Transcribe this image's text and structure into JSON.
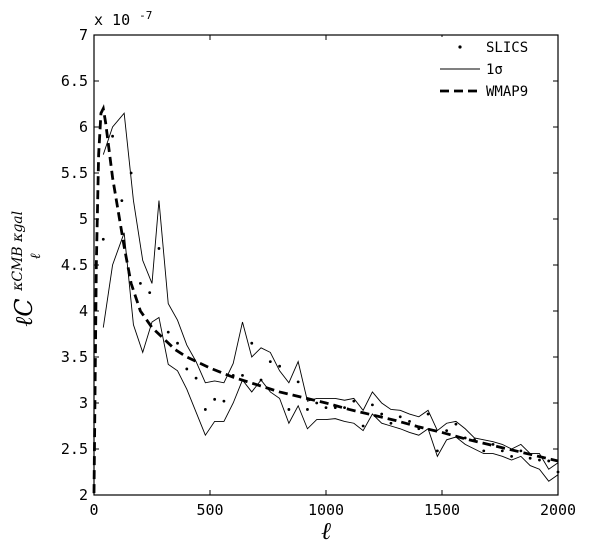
{
  "chart_data": {
    "type": "line",
    "x_axis": {
      "label": "ℓ",
      "range": [
        0,
        2000
      ],
      "ticks": [
        0,
        500,
        1000,
        1500,
        2000
      ],
      "tick_labels": [
        "0",
        "500",
        "1000",
        "1500",
        "2000"
      ]
    },
    "y_axis": {
      "label_main": "ℓC",
      "label_sup": "κCMB κgal",
      "label_sub": "ℓ",
      "range": [
        2,
        7
      ],
      "ticks": [
        2,
        2.5,
        3,
        3.5,
        4,
        4.5,
        5,
        5.5,
        6,
        6.5,
        7
      ],
      "tick_labels": [
        "2",
        "2.5",
        "3",
        "3.5",
        "4",
        "4.5",
        "5",
        "5.5",
        "6",
        "6.5",
        "7"
      ],
      "multiplier_base": "x 10",
      "multiplier_exp": "-7"
    },
    "grid": false,
    "legend_position": "top-right",
    "series": [
      {
        "name": "SLICS",
        "style": "dots",
        "color": "#000000",
        "points": [
          [
            40,
            4.78
          ],
          [
            80,
            5.9
          ],
          [
            120,
            5.2
          ],
          [
            160,
            5.5
          ],
          [
            200,
            4.3
          ],
          [
            240,
            4.2
          ],
          [
            280,
            4.68
          ],
          [
            320,
            3.77
          ],
          [
            360,
            3.65
          ],
          [
            400,
            3.37
          ],
          [
            440,
            3.27
          ],
          [
            480,
            2.93
          ],
          [
            520,
            3.04
          ],
          [
            560,
            3.02
          ],
          [
            600,
            3.3
          ],
          [
            640,
            3.3
          ],
          [
            680,
            3.65
          ],
          [
            720,
            3.25
          ],
          [
            760,
            3.45
          ],
          [
            800,
            3.4
          ],
          [
            840,
            2.93
          ],
          [
            880,
            3.23
          ],
          [
            920,
            2.93
          ],
          [
            960,
            3.0
          ],
          [
            1000,
            2.95
          ],
          [
            1040,
            2.95
          ],
          [
            1080,
            2.95
          ],
          [
            1120,
            3.02
          ],
          [
            1160,
            2.75
          ],
          [
            1200,
            2.98
          ],
          [
            1240,
            2.88
          ],
          [
            1280,
            2.78
          ],
          [
            1320,
            2.85
          ],
          [
            1360,
            2.8
          ],
          [
            1400,
            2.72
          ],
          [
            1440,
            2.88
          ],
          [
            1480,
            2.48
          ],
          [
            1520,
            2.7
          ],
          [
            1560,
            2.77
          ],
          [
            1600,
            2.62
          ],
          [
            1640,
            2.6
          ],
          [
            1680,
            2.48
          ],
          [
            1720,
            2.55
          ],
          [
            1760,
            2.48
          ],
          [
            1800,
            2.42
          ],
          [
            1840,
            2.48
          ],
          [
            1880,
            2.4
          ],
          [
            1920,
            2.38
          ],
          [
            1960,
            2.37
          ],
          [
            2000,
            2.25
          ]
        ]
      },
      {
        "name": "1σ",
        "style": "thin-solid",
        "color": "#000000",
        "upper": [
          [
            40,
            5.7
          ],
          [
            80,
            6.0
          ],
          [
            130,
            6.15
          ],
          [
            170,
            5.2
          ],
          [
            210,
            4.55
          ],
          [
            250,
            4.3
          ],
          [
            280,
            5.2
          ],
          [
            320,
            4.08
          ],
          [
            360,
            3.9
          ],
          [
            400,
            3.63
          ],
          [
            440,
            3.45
          ],
          [
            480,
            3.22
          ],
          [
            520,
            3.24
          ],
          [
            560,
            3.22
          ],
          [
            600,
            3.43
          ],
          [
            640,
            3.88
          ],
          [
            680,
            3.5
          ],
          [
            720,
            3.6
          ],
          [
            760,
            3.55
          ],
          [
            800,
            3.35
          ],
          [
            840,
            3.22
          ],
          [
            880,
            3.45
          ],
          [
            920,
            3.02
          ],
          [
            960,
            3.05
          ],
          [
            1000,
            3.05
          ],
          [
            1040,
            3.05
          ],
          [
            1080,
            3.03
          ],
          [
            1120,
            3.05
          ],
          [
            1160,
            2.92
          ],
          [
            1200,
            3.12
          ],
          [
            1240,
            3.0
          ],
          [
            1280,
            2.93
          ],
          [
            1320,
            2.92
          ],
          [
            1360,
            2.88
          ],
          [
            1400,
            2.85
          ],
          [
            1440,
            2.92
          ],
          [
            1480,
            2.7
          ],
          [
            1520,
            2.78
          ],
          [
            1560,
            2.8
          ],
          [
            1600,
            2.72
          ],
          [
            1640,
            2.62
          ],
          [
            1680,
            2.6
          ],
          [
            1720,
            2.58
          ],
          [
            1760,
            2.55
          ],
          [
            1800,
            2.5
          ],
          [
            1840,
            2.55
          ],
          [
            1880,
            2.45
          ],
          [
            1920,
            2.45
          ],
          [
            1960,
            2.28
          ],
          [
            2000,
            2.35
          ]
        ],
        "lower": [
          [
            40,
            3.82
          ],
          [
            80,
            4.5
          ],
          [
            130,
            4.85
          ],
          [
            170,
            3.85
          ],
          [
            210,
            3.55
          ],
          [
            250,
            3.88
          ],
          [
            280,
            3.93
          ],
          [
            320,
            3.42
          ],
          [
            360,
            3.35
          ],
          [
            400,
            3.15
          ],
          [
            440,
            2.9
          ],
          [
            480,
            2.65
          ],
          [
            520,
            2.8
          ],
          [
            560,
            2.8
          ],
          [
            600,
            3.0
          ],
          [
            640,
            3.25
          ],
          [
            680,
            3.12
          ],
          [
            720,
            3.25
          ],
          [
            760,
            3.12
          ],
          [
            800,
            3.05
          ],
          [
            840,
            2.78
          ],
          [
            880,
            2.97
          ],
          [
            920,
            2.72
          ],
          [
            960,
            2.82
          ],
          [
            1000,
            2.82
          ],
          [
            1040,
            2.83
          ],
          [
            1080,
            2.8
          ],
          [
            1120,
            2.78
          ],
          [
            1160,
            2.7
          ],
          [
            1200,
            2.88
          ],
          [
            1240,
            2.78
          ],
          [
            1280,
            2.75
          ],
          [
            1320,
            2.72
          ],
          [
            1360,
            2.68
          ],
          [
            1400,
            2.65
          ],
          [
            1440,
            2.72
          ],
          [
            1480,
            2.42
          ],
          [
            1520,
            2.6
          ],
          [
            1560,
            2.63
          ],
          [
            1600,
            2.55
          ],
          [
            1640,
            2.5
          ],
          [
            1680,
            2.45
          ],
          [
            1720,
            2.45
          ],
          [
            1760,
            2.42
          ],
          [
            1800,
            2.38
          ],
          [
            1840,
            2.42
          ],
          [
            1880,
            2.32
          ],
          [
            1920,
            2.28
          ],
          [
            1960,
            2.15
          ],
          [
            2000,
            2.22
          ]
        ]
      },
      {
        "name": "WMAP9",
        "style": "dashed",
        "color": "#000000",
        "points": [
          [
            0,
            2.02
          ],
          [
            10,
            4.5
          ],
          [
            20,
            5.7
          ],
          [
            30,
            6.15
          ],
          [
            40,
            6.2
          ],
          [
            50,
            6.05
          ],
          [
            60,
            5.85
          ],
          [
            80,
            5.45
          ],
          [
            100,
            5.15
          ],
          [
            130,
            4.7
          ],
          [
            160,
            4.3
          ],
          [
            200,
            4.0
          ],
          [
            250,
            3.82
          ],
          [
            300,
            3.7
          ],
          [
            350,
            3.58
          ],
          [
            400,
            3.5
          ],
          [
            500,
            3.38
          ],
          [
            600,
            3.28
          ],
          [
            700,
            3.2
          ],
          [
            800,
            3.12
          ],
          [
            900,
            3.06
          ],
          [
            1000,
            3.0
          ],
          [
            1100,
            2.93
          ],
          [
            1200,
            2.87
          ],
          [
            1300,
            2.81
          ],
          [
            1400,
            2.74
          ],
          [
            1500,
            2.68
          ],
          [
            1600,
            2.61
          ],
          [
            1700,
            2.55
          ],
          [
            1800,
            2.49
          ],
          [
            1900,
            2.43
          ],
          [
            2000,
            2.37
          ]
        ]
      }
    ]
  }
}
